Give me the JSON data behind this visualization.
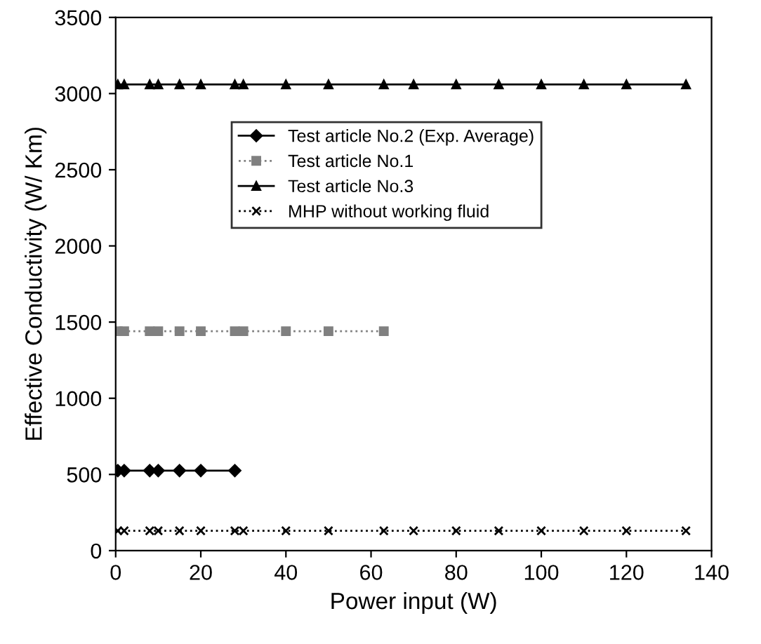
{
  "chart_data": {
    "type": "line",
    "xlabel": "Power input (W)",
    "ylabel": "Effective Conductivity (W/ Km)",
    "xlim": [
      0,
      140
    ],
    "xticks": [
      0,
      20,
      40,
      60,
      80,
      100,
      120,
      140
    ],
    "ylim": [
      0,
      3500
    ],
    "yticks": [
      0,
      500,
      1000,
      1500,
      2000,
      2500,
      3000,
      3500
    ],
    "grid": false,
    "legend": "top left",
    "series": [
      {
        "name": "Test article No.2 (Exp. Average)",
        "color": "#000000",
        "marker": "diamond",
        "line_style": "solid",
        "x": [
          0.5,
          2,
          8,
          10,
          15,
          20,
          28
        ],
        "values": [
          525,
          525,
          525,
          525,
          525,
          525,
          525
        ]
      },
      {
        "name": "Test article No.1",
        "color": "#808080",
        "marker": "square",
        "line_style": "dotted",
        "x": [
          0.5,
          2,
          8,
          10,
          15,
          20,
          28,
          30,
          40,
          50,
          63
        ],
        "values": [
          1440,
          1440,
          1440,
          1440,
          1440,
          1440,
          1440,
          1440,
          1440,
          1440,
          1440
        ]
      },
      {
        "name": "Test article No.3",
        "color": "#000000",
        "marker": "triangle",
        "line_style": "solid",
        "x": [
          0.5,
          2,
          8,
          10,
          15,
          20,
          28,
          30,
          40,
          50,
          63,
          70,
          80,
          90,
          100,
          110,
          120,
          134
        ],
        "values": [
          3060,
          3060,
          3060,
          3060,
          3060,
          3060,
          3060,
          3060,
          3060,
          3060,
          3060,
          3060,
          3060,
          3060,
          3060,
          3060,
          3060,
          3060
        ]
      },
      {
        "name": "MHP without working fluid",
        "color": "#000000",
        "marker": "cross",
        "line_style": "dotted",
        "x": [
          0.5,
          2,
          8,
          10,
          15,
          20,
          28,
          30,
          40,
          50,
          63,
          70,
          80,
          90,
          100,
          110,
          120,
          134
        ],
        "values": [
          130,
          130,
          130,
          130,
          130,
          130,
          130,
          130,
          130,
          130,
          130,
          130,
          130,
          130,
          130,
          130,
          130,
          130
        ]
      }
    ]
  }
}
